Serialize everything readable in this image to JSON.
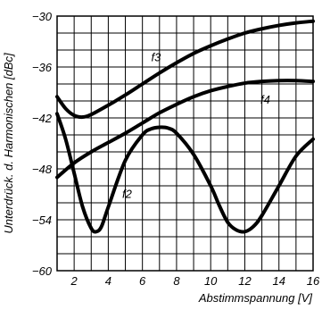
{
  "chart_data": {
    "type": "line",
    "ylabel": "Unterdrück. d. Harmonischen [dBc]",
    "xlabel": "Abstimmspannung [V]",
    "xlim": [
      1,
      16
    ],
    "ylim": [
      -60,
      -30
    ],
    "x_ticks": [
      2,
      4,
      6,
      8,
      10,
      12,
      14,
      16
    ],
    "x_tick_labels": [
      "2",
      "4",
      "6",
      "8",
      "10",
      "12",
      "14",
      "16"
    ],
    "y_ticks": [
      -60,
      -54,
      -48,
      -42,
      -36,
      -30
    ],
    "y_tick_labels": [
      "−60",
      "−54",
      "−48",
      "−42",
      "−36",
      "−30"
    ],
    "x_minor_step": 1,
    "y_minor_step": 2,
    "grid": true,
    "line_color": "#000000",
    "series": [
      {
        "name": "f3",
        "x": [
          1,
          1.5,
          2,
          2.5,
          3,
          4,
          5,
          6,
          7,
          8,
          9,
          10,
          11,
          12,
          13,
          14,
          15,
          16
        ],
        "y": [
          -39.5,
          -40.9,
          -41.7,
          -41.9,
          -41.6,
          -40.5,
          -39.3,
          -38.0,
          -36.7,
          -35.5,
          -34.4,
          -33.5,
          -32.7,
          -32.0,
          -31.5,
          -31.1,
          -30.8,
          -30.6
        ]
      },
      {
        "name": "f4",
        "x": [
          1,
          2,
          3,
          4,
          5,
          6,
          7,
          8,
          9,
          10,
          11,
          12,
          13,
          14,
          15,
          16
        ],
        "y": [
          -49.0,
          -47.3,
          -46.0,
          -44.9,
          -43.8,
          -42.6,
          -41.4,
          -40.4,
          -39.5,
          -38.8,
          -38.3,
          -37.9,
          -37.7,
          -37.6,
          -37.6,
          -37.7
        ]
      },
      {
        "name": "f2",
        "x": [
          1,
          1.5,
          2,
          2.5,
          3,
          3.3,
          3.6,
          4,
          5,
          6,
          6.5,
          7,
          7.5,
          8,
          9,
          10,
          10.5,
          11,
          11.5,
          12,
          12.5,
          13,
          14,
          15,
          16
        ],
        "y": [
          -41.5,
          -44.5,
          -48.5,
          -52.5,
          -55.0,
          -55.4,
          -54.8,
          -52.5,
          -47.0,
          -44.0,
          -43.3,
          -43.1,
          -43.2,
          -43.8,
          -46.3,
          -50.0,
          -52.3,
          -54.3,
          -55.2,
          -55.4,
          -54.8,
          -53.5,
          -50.0,
          -46.5,
          -44.5
        ]
      }
    ],
    "series_label_positions": [
      {
        "name": "f3",
        "x": 6.8,
        "y": -35.3
      },
      {
        "name": "f4",
        "x": 13.2,
        "y": -40.3
      },
      {
        "name": "f2",
        "x": 5.1,
        "y": -51.4
      }
    ]
  }
}
